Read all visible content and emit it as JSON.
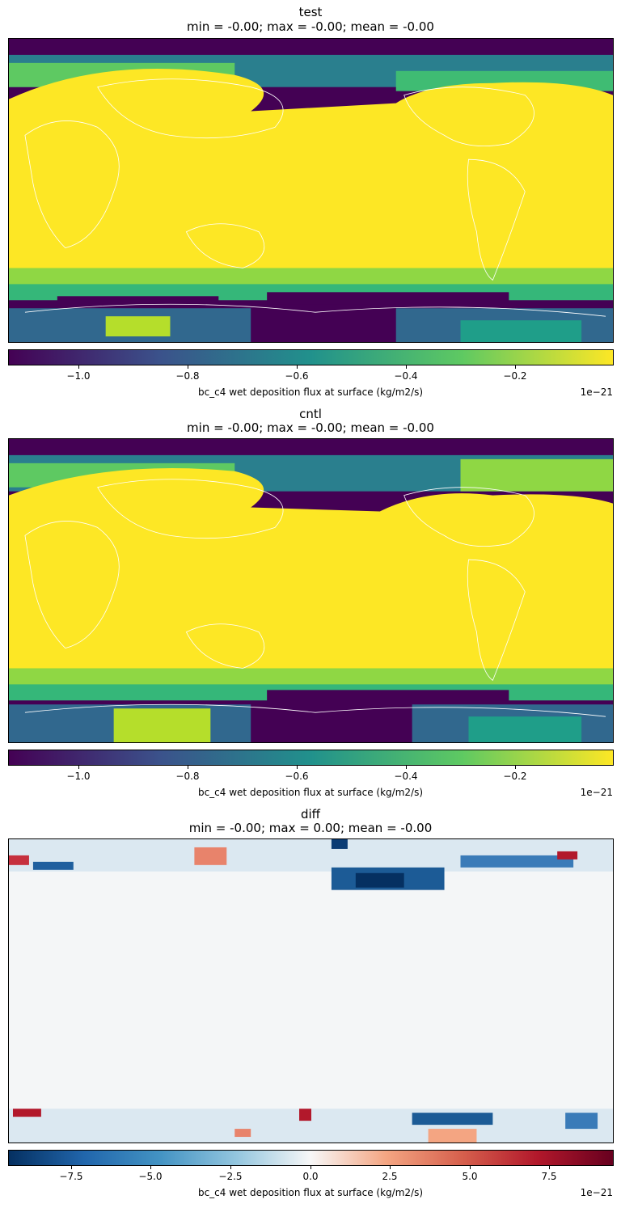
{
  "panels": [
    {
      "name": "test",
      "title": "test",
      "subtitle": "min = -0.00; max = -0.00; mean = -0.00",
      "colormap": "viridis",
      "colorbar_label": "bc_c4 wet deposition flux at surface (kg/m2/s)",
      "colorbar_exponent": "1e−21",
      "colorbar_ticks": [
        "−1.0",
        "−0.8",
        "−0.6",
        "−0.4",
        "−0.2"
      ],
      "colorbar_tick_values": [
        -1.0,
        -0.8,
        -0.6,
        -0.4,
        -0.2
      ],
      "colorbar_range": [
        -1.13,
        -0.02
      ]
    },
    {
      "name": "cntl",
      "title": "cntl",
      "subtitle": "min = -0.00; max = -0.00; mean = -0.00",
      "colormap": "viridis",
      "colorbar_label": "bc_c4 wet deposition flux at surface (kg/m2/s)",
      "colorbar_exponent": "1e−21",
      "colorbar_ticks": [
        "−1.0",
        "−0.8",
        "−0.6",
        "−0.4",
        "−0.2"
      ],
      "colorbar_tick_values": [
        -1.0,
        -0.8,
        -0.6,
        -0.4,
        -0.2
      ],
      "colorbar_range": [
        -1.13,
        -0.02
      ]
    },
    {
      "name": "diff",
      "title": "diff",
      "subtitle": "min = -0.00; max = 0.00; mean = -0.00",
      "colormap": "RdBu_r",
      "colorbar_label": "bc_c4 wet deposition flux at surface (kg/m2/s)",
      "colorbar_exponent": "1e−21",
      "colorbar_ticks": [
        "−7.5",
        "−5.0",
        "−2.5",
        "0.0",
        "2.5",
        "5.0",
        "7.5"
      ],
      "colorbar_tick_values": [
        -7.5,
        -5.0,
        -2.5,
        0.0,
        2.5,
        5.0,
        7.5
      ],
      "colorbar_range": [
        -9.5,
        9.5
      ]
    }
  ]
}
